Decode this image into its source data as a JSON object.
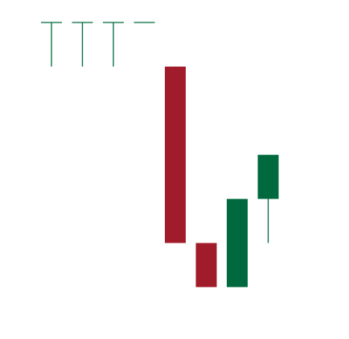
{
  "chart_data": {
    "type": "candlestick",
    "title": "",
    "xlabel": "",
    "ylabel": "",
    "ylim": [
      0,
      10
    ],
    "grid": false,
    "legend": "none",
    "colors": {
      "up": "#006a3e",
      "down": "#a11c2a"
    },
    "candles": [
      {
        "open": 10.0,
        "high": 10.0,
        "low": 8.5,
        "close": 10.0
      },
      {
        "open": 10.0,
        "high": 10.0,
        "low": 8.5,
        "close": 10.0
      },
      {
        "open": 10.0,
        "high": 10.0,
        "low": 8.5,
        "close": 10.0
      },
      {
        "open": 10.0,
        "high": 10.0,
        "low": 10.0,
        "close": 10.0
      },
      {
        "open": 8.5,
        "high": 8.5,
        "low": 2.5,
        "close": 2.5
      },
      {
        "open": 2.5,
        "high": 2.5,
        "low": 1.0,
        "close": 1.0
      },
      {
        "open": 1.0,
        "high": 4.0,
        "low": 1.0,
        "close": 4.0
      },
      {
        "open": 4.0,
        "high": 5.5,
        "low": 2.5,
        "close": 5.5
      }
    ]
  }
}
